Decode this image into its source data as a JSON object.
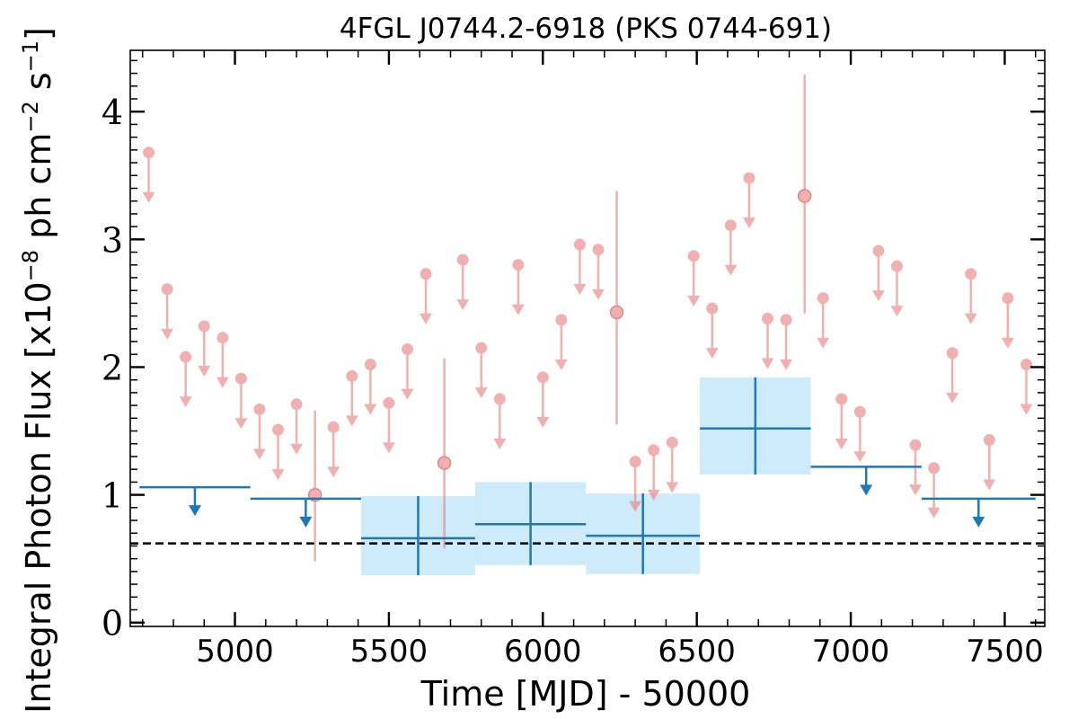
{
  "chart_data": {
    "type": "scatter",
    "title": "4FGL J0744.2-6918 (PKS 0744-691)",
    "xlabel": "Time [MJD] - 50000",
    "ylabel": "Integral Photon Flux [x10^-8 ph cm^-2 s^-1]",
    "ylabel_parts": [
      "Integral Photon Flux [x10",
      "−8",
      " ph cm",
      "−2",
      " s",
      "−1",
      "]"
    ],
    "xlim": [
      4660,
      7630
    ],
    "ylim": [
      -0.03,
      4.48
    ],
    "xticks": [
      5000,
      5500,
      6000,
      6500,
      7000,
      7500
    ],
    "xtick_labels": [
      "5000",
      "5500",
      "6000",
      "6500",
      "7000",
      "7500"
    ],
    "yticks": [
      0,
      1,
      2,
      3,
      4
    ],
    "ytick_labels": [
      "0",
      "1",
      "2",
      "3",
      "4"
    ],
    "colors": {
      "short_bins": "#e88080",
      "long_bins": "#1f77b4",
      "long_bins_band": "#cdebfa",
      "reference_line": "#000000"
    },
    "reference_line": {
      "y": 0.62,
      "style": "dashed"
    },
    "short_upper_limits": [
      {
        "x": 4720,
        "y": 3.68
      },
      {
        "x": 4780,
        "y": 2.61
      },
      {
        "x": 4840,
        "y": 2.08
      },
      {
        "x": 4900,
        "y": 2.32
      },
      {
        "x": 4960,
        "y": 2.23
      },
      {
        "x": 5020,
        "y": 1.91
      },
      {
        "x": 5080,
        "y": 1.67
      },
      {
        "x": 5140,
        "y": 1.51
      },
      {
        "x": 5200,
        "y": 1.71
      },
      {
        "x": 5320,
        "y": 1.53
      },
      {
        "x": 5380,
        "y": 1.93
      },
      {
        "x": 5440,
        "y": 2.02
      },
      {
        "x": 5500,
        "y": 1.72
      },
      {
        "x": 5560,
        "y": 2.14
      },
      {
        "x": 5620,
        "y": 2.73
      },
      {
        "x": 5740,
        "y": 2.84
      },
      {
        "x": 5800,
        "y": 2.15
      },
      {
        "x": 5860,
        "y": 1.75
      },
      {
        "x": 5920,
        "y": 2.8
      },
      {
        "x": 6000,
        "y": 1.92
      },
      {
        "x": 6060,
        "y": 2.37
      },
      {
        "x": 6120,
        "y": 2.96
      },
      {
        "x": 6180,
        "y": 2.92
      },
      {
        "x": 6300,
        "y": 1.26
      },
      {
        "x": 6360,
        "y": 1.35
      },
      {
        "x": 6420,
        "y": 1.41
      },
      {
        "x": 6490,
        "y": 2.87
      },
      {
        "x": 6550,
        "y": 2.46
      },
      {
        "x": 6610,
        "y": 3.11
      },
      {
        "x": 6670,
        "y": 3.48
      },
      {
        "x": 6730,
        "y": 2.38
      },
      {
        "x": 6790,
        "y": 2.37
      },
      {
        "x": 6910,
        "y": 2.54
      },
      {
        "x": 6970,
        "y": 1.75
      },
      {
        "x": 7030,
        "y": 1.65
      },
      {
        "x": 7090,
        "y": 2.91
      },
      {
        "x": 7150,
        "y": 2.79
      },
      {
        "x": 7210,
        "y": 1.39
      },
      {
        "x": 7270,
        "y": 1.21
      },
      {
        "x": 7330,
        "y": 2.11
      },
      {
        "x": 7390,
        "y": 2.73
      },
      {
        "x": 7450,
        "y": 1.43
      },
      {
        "x": 7510,
        "y": 2.54
      },
      {
        "x": 7570,
        "y": 2.02
      }
    ],
    "short_detections": [
      {
        "x": 5260,
        "y": 1.0,
        "lo": 0.48,
        "hi": 1.66
      },
      {
        "x": 5680,
        "y": 1.25,
        "lo": 0.58,
        "hi": 2.07
      },
      {
        "x": 6240,
        "y": 2.43,
        "lo": 1.55,
        "hi": 3.38
      },
      {
        "x": 6850,
        "y": 3.34,
        "lo": 2.42,
        "hi": 4.29
      }
    ],
    "long_upper_limits": [
      {
        "x0": 4690,
        "x1": 5050,
        "y": 1.06
      },
      {
        "x0": 5050,
        "x1": 5410,
        "y": 0.97
      },
      {
        "x0": 6870,
        "x1": 7230,
        "y": 1.22
      },
      {
        "x0": 7230,
        "x1": 7600,
        "y": 0.97
      }
    ],
    "long_detections": [
      {
        "x0": 5410,
        "x1": 5780,
        "y": 0.66,
        "lo": 0.37,
        "hi": 0.99
      },
      {
        "x0": 5780,
        "x1": 6140,
        "y": 0.77,
        "lo": 0.45,
        "hi": 1.1
      },
      {
        "x0": 6140,
        "x1": 6510,
        "y": 0.68,
        "lo": 0.38,
        "hi": 1.01
      },
      {
        "x0": 6510,
        "x1": 6870,
        "y": 1.52,
        "lo": 1.16,
        "hi": 1.92
      }
    ]
  }
}
